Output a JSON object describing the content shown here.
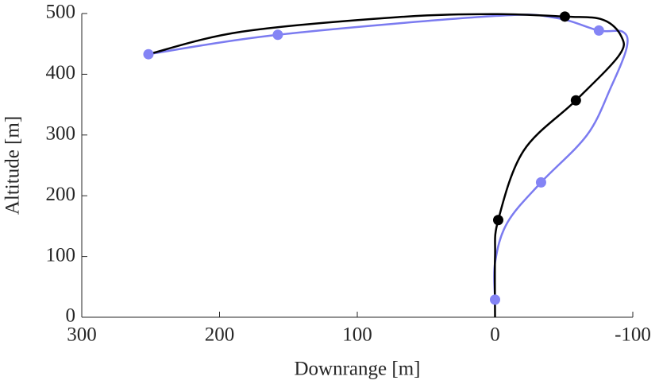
{
  "chart_data": {
    "type": "line",
    "x_label": "Downrange [m]",
    "y_label": "Altitude [m]",
    "xlim": [
      300,
      -100
    ],
    "xticks": [
      300,
      200,
      100,
      0,
      -100
    ],
    "ylim": [
      0,
      500
    ],
    "yticks": [
      0,
      100,
      200,
      300,
      400,
      500
    ],
    "series": [
      {
        "color": "#7b7bf0",
        "marker": false,
        "x": [
          0,
          0,
          -9,
          -33.4,
          -66.8,
          -84,
          -95.6,
          -92.7,
          -75.4,
          -43.8,
          0,
          157.7,
          251.6
        ],
        "values": [
          29,
          90,
          156,
          222,
          300,
          378,
          444,
          470,
          472,
          493,
          496,
          465,
          433
        ]
      },
      {
        "color": "#000000",
        "marker": false,
        "x": [
          0,
          0,
          -2.3,
          -20.7,
          -58.7,
          -90,
          -91.5,
          -78,
          -50.7,
          0,
          71,
          184,
          251.6
        ],
        "values": [
          0,
          100,
          160,
          274,
          357,
          431,
          463,
          490,
          495,
          499,
          494,
          470,
          433
        ]
      },
      {
        "color": "#000000",
        "marker": true,
        "x": [
          -2.3,
          -58.7,
          -50.7
        ],
        "values": [
          160,
          357,
          495
        ]
      },
      {
        "color": "#8484f5",
        "marker": true,
        "x": [
          0,
          -33.4,
          -75.4,
          157.7,
          251.6
        ],
        "values": [
          29,
          222,
          472,
          465,
          433
        ]
      }
    ]
  }
}
